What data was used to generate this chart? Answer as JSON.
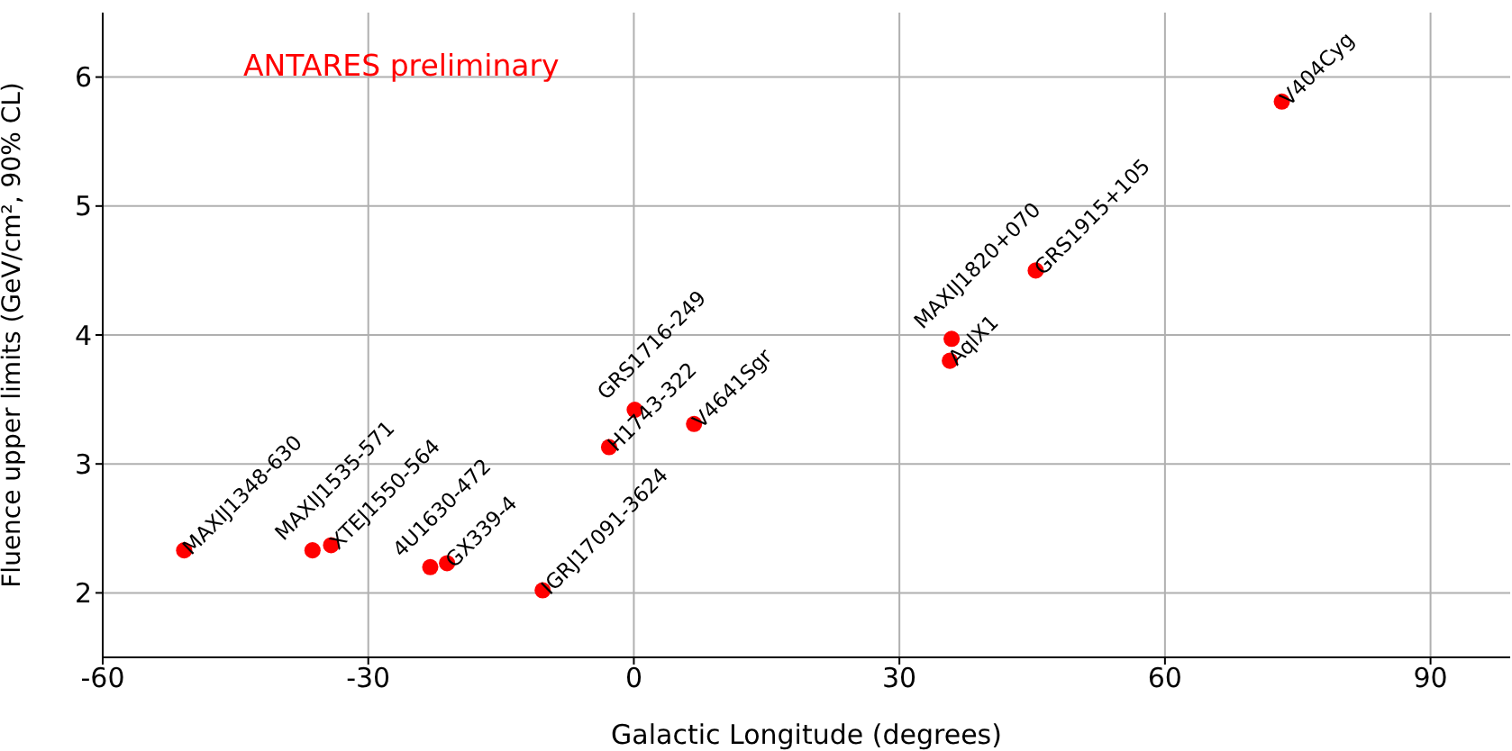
{
  "chart_data": {
    "type": "scatter",
    "xlabel": "Galactic Longitude (degrees)",
    "ylabel": "Fluence upper limits (GeV/cm², 90% CL)",
    "x": [
      -50.8,
      -36.3,
      -34.2,
      -23.0,
      -21.1,
      -10.3,
      -2.8,
      0.1,
      6.8,
      35.7,
      35.9,
      45.4,
      73.2
    ],
    "series": [
      {
        "color": "#ff0000",
        "values": [
          2.33,
          2.33,
          2.37,
          2.2,
          2.23,
          2.02,
          3.13,
          3.42,
          3.31,
          3.8,
          3.97,
          4.5,
          5.81
        ]
      }
    ],
    "xlim": [
      -60,
      99
    ],
    "ylim": [
      1.5,
      6.5
    ],
    "xticks": [
      -60,
      -30,
      0,
      30,
      60,
      90
    ],
    "yticks": [
      2,
      3,
      4,
      5,
      6
    ],
    "grid": true,
    "marker": "circle",
    "annotations": [
      "ANTARES preliminary",
      {
        "text": "MAXIJ1348-630",
        "x": -50.8,
        "y": 2.33
      },
      {
        "text": "MAXIJ1535-571",
        "x": -36.3,
        "y": 2.33
      },
      {
        "text": "XTEJ1550-564",
        "x": -34.2,
        "y": 2.37
      },
      {
        "text": "4U1630-472",
        "x": -23.0,
        "y": 2.2
      },
      {
        "text": "GX339-4",
        "x": -21.1,
        "y": 2.23
      },
      {
        "text": "IGRJ17091-3624",
        "x": -10.3,
        "y": 2.02
      },
      {
        "text": "H1743-322",
        "x": -2.8,
        "y": 3.13
      },
      {
        "text": "GRS1716-249",
        "x": 0.1,
        "y": 3.42
      },
      {
        "text": "V4641Sgr",
        "x": 6.8,
        "y": 3.31
      },
      {
        "text": "AqlX1",
        "x": 35.7,
        "y": 3.8
      },
      {
        "text": "MAXIJ1820+070",
        "x": 35.9,
        "y": 3.97
      },
      {
        "text": "GRS1915+105",
        "x": 45.4,
        "y": 4.5
      },
      {
        "text": "V404Cyg",
        "x": 73.2,
        "y": 5.81
      }
    ]
  }
}
